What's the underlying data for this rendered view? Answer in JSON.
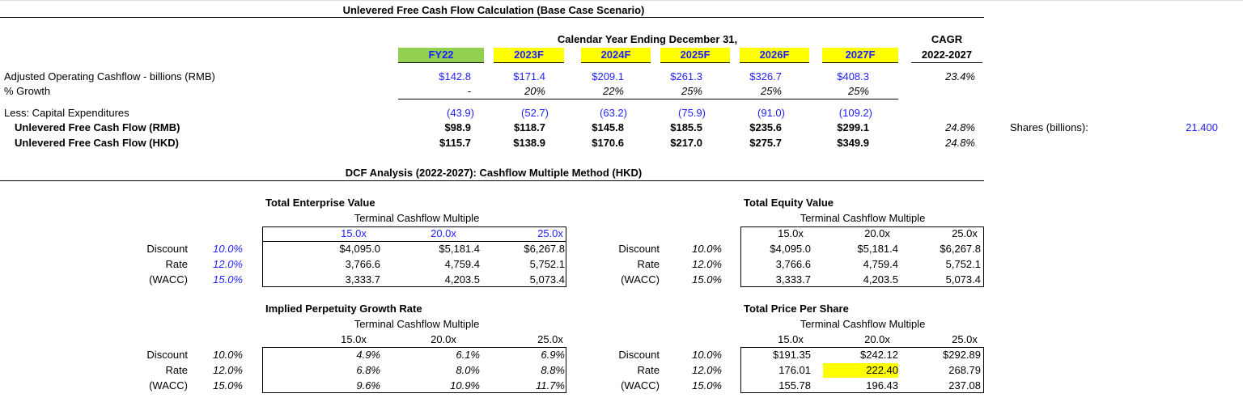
{
  "header": {
    "title": "Unlevered Free Cash Flow Calculation (Base Case Scenario)"
  },
  "fcf_table": {
    "period_label": "Calendar Year Ending December 31,",
    "cagr_label": "CAGR",
    "cagr_period": "2022-2027",
    "years": [
      "FY22",
      "2023F",
      "2024F",
      "2025F",
      "2026F",
      "2027F"
    ],
    "rows": [
      {
        "label": "Adjusted Operating Cashflow - billions (RMB)",
        "values": [
          "$142.8",
          "$171.4",
          "$209.1",
          "$261.3",
          "$326.7",
          "$408.3"
        ],
        "cagr": "23.4%"
      },
      {
        "label": "% Growth",
        "values": [
          "-",
          "20%",
          "22%",
          "25%",
          "25%",
          "25%"
        ]
      },
      {
        "label": "Less: Capital Expenditures",
        "values": [
          "(43.9)",
          "(52.7)",
          "(63.2)",
          "(75.9)",
          "(91.0)",
          "(109.2)"
        ]
      },
      {
        "label": "Unlevered Free Cash Flow (RMB)",
        "values": [
          "$98.9",
          "$118.7",
          "$145.8",
          "$185.5",
          "$235.6",
          "$299.1"
        ],
        "cagr": "24.8%"
      },
      {
        "label": "Unlevered Free Cash Flow (HKD)",
        "values": [
          "$115.7",
          "$138.9",
          "$170.6",
          "$217.0",
          "$275.7",
          "$349.9"
        ],
        "cagr": "24.8%"
      }
    ],
    "shares_label": "Shares (billions):",
    "shares_value": "21.400"
  },
  "dcf": {
    "title": "DCF Analysis (2022-2027):  Cashflow Multiple Method (HKD)",
    "grids": [
      {
        "title": "Total Enterprise Value",
        "subtitle": "Terminal Cashflow Multiple",
        "columns": [
          "15.0x",
          "20.0x",
          "25.0x"
        ],
        "row_labels": [
          "Discount",
          "Rate",
          "(WACC)"
        ],
        "rates": [
          "10.0%",
          "12.0%",
          "15.0%"
        ],
        "cells": [
          [
            "$4,095.0",
            "$5,181.4",
            "$6,267.8"
          ],
          [
            "3,766.6",
            "4,759.4",
            "5,752.1"
          ],
          [
            "3,333.7",
            "4,203.5",
            "5,073.4"
          ]
        ]
      },
      {
        "title": "Total Equity Value",
        "subtitle": "Terminal Cashflow Multiple",
        "columns": [
          "15.0x",
          "20.0x",
          "25.0x"
        ],
        "row_labels": [
          "Discount",
          "Rate",
          "(WACC)"
        ],
        "rates": [
          "10.0%",
          "12.0%",
          "15.0%"
        ],
        "cells": [
          [
            "$4,095.0",
            "$5,181.4",
            "$6,267.8"
          ],
          [
            "3,766.6",
            "4,759.4",
            "5,752.1"
          ],
          [
            "3,333.7",
            "4,203.5",
            "5,073.4"
          ]
        ]
      },
      {
        "title": "Implied Perpetuity Growth Rate",
        "subtitle": "Terminal Cashflow Multiple",
        "columns": [
          "15.0x",
          "20.0x",
          "25.0x"
        ],
        "row_labels": [
          "Discount",
          "Rate",
          "(WACC)"
        ],
        "rates": [
          "10.0%",
          "12.0%",
          "15.0%"
        ],
        "cells": [
          [
            "4.9%",
            "6.1%",
            "6.9%"
          ],
          [
            "6.8%",
            "8.0%",
            "8.8%"
          ],
          [
            "9.6%",
            "10.9%",
            "11.7%"
          ]
        ]
      },
      {
        "title": "Total Price Per Share",
        "subtitle": "Terminal Cashflow Multiple",
        "columns": [
          "15.0x",
          "20.0x",
          "25.0x"
        ],
        "row_labels": [
          "Discount",
          "Rate",
          "(WACC)"
        ],
        "rates": [
          "10.0%",
          "12.0%",
          "15.0%"
        ],
        "cells": [
          [
            "$191.35",
            "$242.12",
            "$292.89"
          ],
          [
            "176.01",
            "222.40",
            "268.79"
          ],
          [
            "155.78",
            "196.43",
            "237.08"
          ]
        ]
      }
    ]
  }
}
